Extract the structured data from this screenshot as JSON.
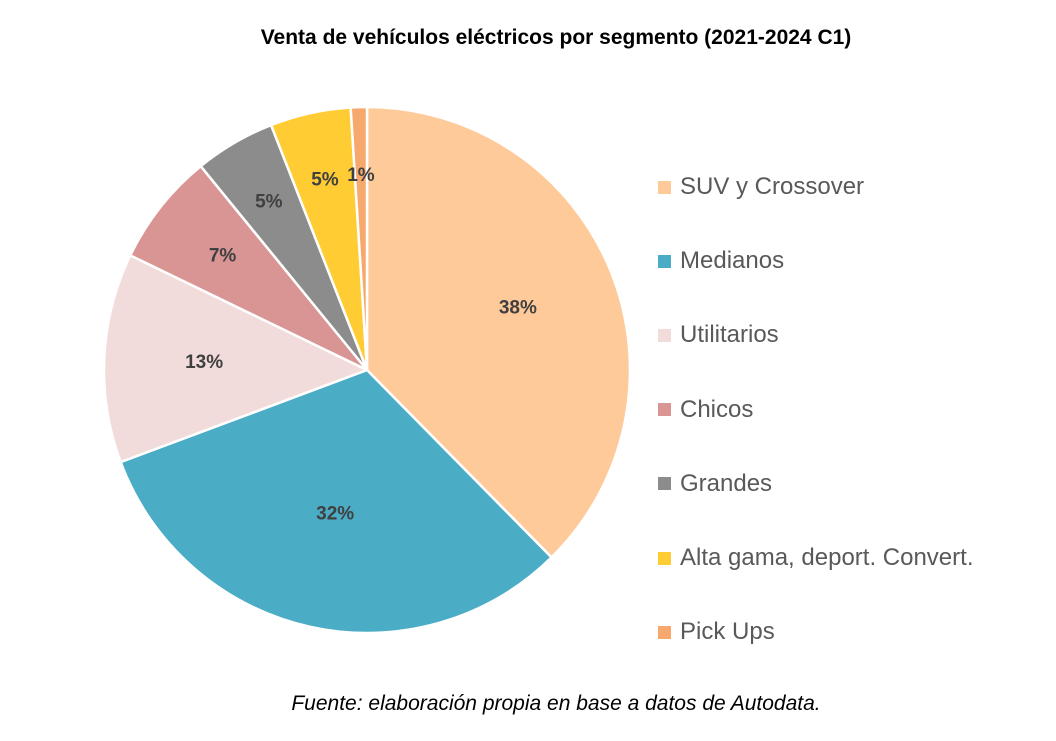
{
  "chart_data": {
    "type": "pie",
    "title": "Venta de vehículos eléctricos por segmento  (2021-2024  C1)",
    "categories": [
      "SUV y Crossover",
      "Medianos",
      "Utilitarios",
      "Chicos",
      "Grandes",
      "Alta gama, deport. Convert.",
      "Pick Ups"
    ],
    "values": [
      38,
      32,
      13,
      7,
      5,
      5,
      1
    ],
    "value_labels": [
      "38%",
      "32%",
      "13%",
      "7%",
      "5%",
      "5%",
      "1%"
    ],
    "colors": [
      "#FFCA99",
      "#4BACC6",
      "#F2DCDB",
      "#D99594",
      "#8C8C8C",
      "#FFCC33",
      "#F6A86D"
    ],
    "start_angle_deg": 0,
    "direction": "clockwise",
    "legend_position": "right",
    "unit": "%"
  },
  "footer": {
    "source": "Fuente:  elaboración  propia  en  base  a  datos  de  Autodata."
  }
}
